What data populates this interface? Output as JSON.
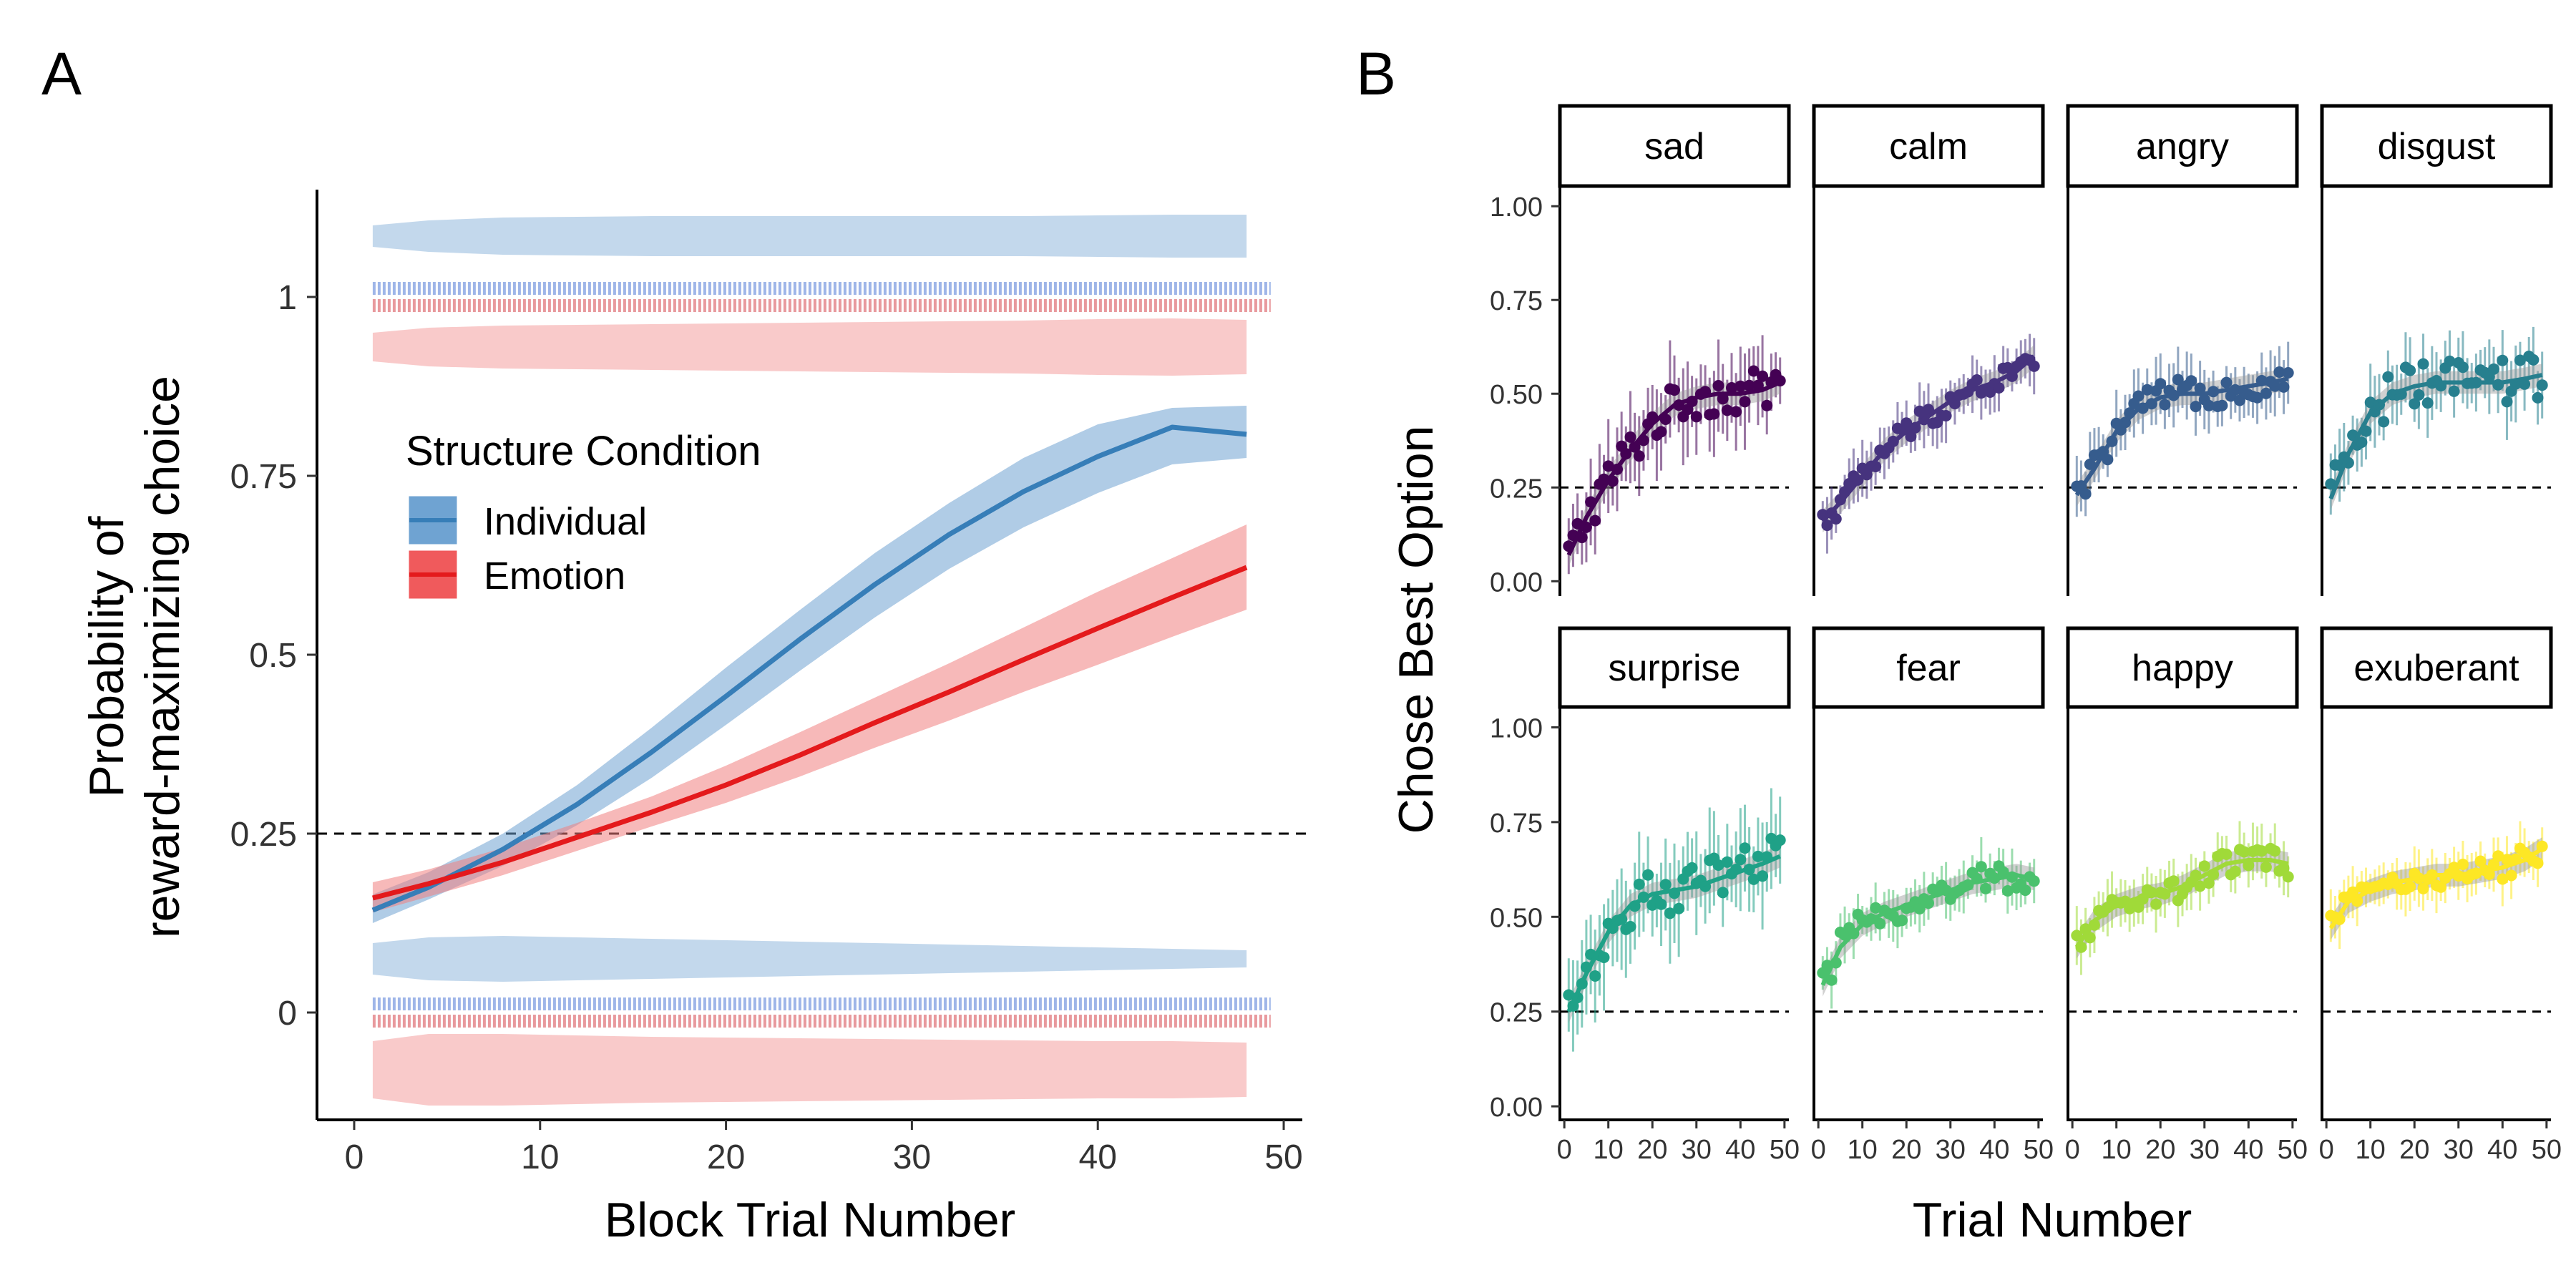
{
  "panels": {
    "A": {
      "letter": "A"
    },
    "B": {
      "letter": "B"
    }
  },
  "chart_data": [
    {
      "id": "A",
      "type": "line",
      "title": "",
      "xlabel": "Block Trial Number",
      "ylabel_lines": [
        "Probability of",
        "reward-maximizing choice"
      ],
      "xlim": [
        -2,
        51
      ],
      "ylim": [
        -0.15,
        1.15
      ],
      "xticks": [
        0,
        10,
        20,
        30,
        40,
        50
      ],
      "yticks": [
        0,
        0.25,
        0.5,
        0.75,
        1
      ],
      "ytick_labels": [
        "0",
        "0.25",
        "0.5",
        "0.75",
        "1"
      ],
      "reference_line": 0.25,
      "legend": {
        "title": "Structure Condition",
        "placement": "center-left"
      },
      "x": [
        1,
        4,
        8,
        12,
        16,
        20,
        24,
        28,
        32,
        36,
        40,
        44,
        48
      ],
      "series": [
        {
          "name": "Individual",
          "color": "#377EB8",
          "ribbon_color": "#6FA3D2",
          "raw_color": "#4F79D6",
          "y": [
            0.143,
            0.175,
            0.228,
            0.291,
            0.364,
            0.442,
            0.522,
            0.598,
            0.668,
            0.728,
            0.777,
            0.818,
            0.808
          ],
          "ci_low": [
            0.125,
            0.158,
            0.205,
            0.262,
            0.328,
            0.402,
            0.478,
            0.552,
            0.62,
            0.678,
            0.726,
            0.766,
            0.775
          ],
          "ci_high": [
            0.165,
            0.196,
            0.25,
            0.318,
            0.398,
            0.482,
            0.563,
            0.642,
            0.712,
            0.775,
            0.822,
            0.845,
            0.848
          ],
          "violin_top": {
            "center": 1.085,
            "halfwidth": [
              0.015,
              0.022,
              0.026,
              0.027,
              0.028,
              0.028,
              0.028,
              0.028,
              0.028,
              0.028,
              0.029,
              0.03,
              0.03
            ]
          },
          "violin_bottom": {
            "center": 0.075,
            "halfwidth": [
              0.022,
              0.03,
              0.032,
              0.03,
              0.028,
              0.026,
              0.024,
              0.022,
              0.02,
              0.018,
              0.016,
              0.014,
              0.012
            ]
          },
          "raw_points_y": [
            1.012,
            0.012
          ]
        },
        {
          "name": "Emotion",
          "color": "#E41A1C",
          "ribbon_color": "#F08080",
          "raw_color": "#D6454C",
          "y": [
            0.16,
            0.18,
            0.21,
            0.245,
            0.28,
            0.318,
            0.36,
            0.405,
            0.448,
            0.493,
            0.537,
            0.58,
            0.622
          ],
          "ci_low": [
            0.14,
            0.162,
            0.192,
            0.226,
            0.26,
            0.293,
            0.33,
            0.37,
            0.408,
            0.448,
            0.486,
            0.525,
            0.563
          ],
          "ci_high": [
            0.182,
            0.2,
            0.23,
            0.265,
            0.302,
            0.345,
            0.392,
            0.44,
            0.488,
            0.538,
            0.588,
            0.635,
            0.682
          ],
          "violin_top": {
            "center": 0.93,
            "halfwidth": [
              0.02,
              0.027,
              0.03,
              0.031,
              0.032,
              0.033,
              0.034,
              0.035,
              0.036,
              0.037,
              0.039,
              0.04,
              0.038
            ]
          },
          "violin_bottom": {
            "center": -0.08,
            "halfwidth": [
              0.04,
              0.05,
              0.05,
              0.048,
              0.046,
              0.045,
              0.044,
              0.043,
              0.042,
              0.041,
              0.04,
              0.04,
              0.038
            ]
          },
          "raw_points_y": [
            0.988,
            -0.012
          ]
        }
      ]
    },
    {
      "id": "B",
      "type": "scatter",
      "title": "",
      "xlabel": "Trial Number",
      "ylabel": "Chose Best Option",
      "xlim": [
        -1,
        51
      ],
      "ylim": [
        -0.03,
        1.05
      ],
      "xticks": [
        0,
        10,
        20,
        30,
        40,
        50
      ],
      "xtick_labels": [
        "0",
        "10",
        "20",
        "30",
        "40",
        "50"
      ],
      "yticks": [
        0,
        0.25,
        0.5,
        0.75,
        1
      ],
      "ytick_labels": [
        "0.00",
        "0.25",
        "0.50",
        "0.75",
        "1.00"
      ],
      "reference_line": 0.25,
      "facets": [
        {
          "name": "sad",
          "color": "#440154",
          "smooth": [
            [
              1,
              0.07
            ],
            [
              5,
              0.17
            ],
            [
              10,
              0.27
            ],
            [
              15,
              0.35
            ],
            [
              20,
              0.42
            ],
            [
              25,
              0.47
            ],
            [
              30,
              0.49
            ],
            [
              35,
              0.5
            ],
            [
              40,
              0.5
            ],
            [
              45,
              0.51
            ],
            [
              49,
              0.53
            ]
          ],
          "noise": 0.055,
          "err": 0.1
        },
        {
          "name": "calm",
          "color": "#46337E",
          "smooth": [
            [
              1,
              0.16
            ],
            [
              5,
              0.21
            ],
            [
              10,
              0.28
            ],
            [
              15,
              0.35
            ],
            [
              20,
              0.4
            ],
            [
              25,
              0.44
            ],
            [
              30,
              0.48
            ],
            [
              35,
              0.51
            ],
            [
              40,
              0.53
            ],
            [
              45,
              0.56
            ],
            [
              49,
              0.6
            ]
          ],
          "noise": 0.035,
          "err": 0.06
        },
        {
          "name": "angry",
          "color": "#365C8D",
          "smooth": [
            [
              1,
              0.23
            ],
            [
              5,
              0.3
            ],
            [
              10,
              0.4
            ],
            [
              15,
              0.46
            ],
            [
              20,
              0.49
            ],
            [
              25,
              0.5
            ],
            [
              30,
              0.5
            ],
            [
              35,
              0.51
            ],
            [
              40,
              0.52
            ],
            [
              45,
              0.53
            ],
            [
              49,
              0.54
            ]
          ],
          "noise": 0.04,
          "err": 0.07
        },
        {
          "name": "disgust",
          "color": "#277F8E",
          "smooth": [
            [
              1,
              0.22
            ],
            [
              5,
              0.34
            ],
            [
              10,
              0.45
            ],
            [
              15,
              0.5
            ],
            [
              20,
              0.52
            ],
            [
              25,
              0.53
            ],
            [
              30,
              0.53
            ],
            [
              35,
              0.53
            ],
            [
              40,
              0.53
            ],
            [
              45,
              0.54
            ],
            [
              49,
              0.55
            ]
          ],
          "noise": 0.06,
          "err": 0.08
        },
        {
          "name": "surprise",
          "color": "#1FA187",
          "smooth": [
            [
              1,
              0.25
            ],
            [
              5,
              0.35
            ],
            [
              10,
              0.46
            ],
            [
              15,
              0.53
            ],
            [
              20,
              0.56
            ],
            [
              25,
              0.57
            ],
            [
              30,
              0.58
            ],
            [
              35,
              0.6
            ],
            [
              40,
              0.62
            ],
            [
              45,
              0.64
            ],
            [
              49,
              0.66
            ]
          ],
          "noise": 0.06,
          "err": 0.11
        },
        {
          "name": "fear",
          "color": "#4AC16D",
          "smooth": [
            [
              1,
              0.32
            ],
            [
              5,
              0.42
            ],
            [
              10,
              0.48
            ],
            [
              15,
              0.51
            ],
            [
              20,
              0.53
            ],
            [
              25,
              0.55
            ],
            [
              30,
              0.57
            ],
            [
              35,
              0.59
            ],
            [
              40,
              0.6
            ],
            [
              45,
              0.61
            ],
            [
              49,
              0.6
            ]
          ],
          "noise": 0.04,
          "err": 0.06
        },
        {
          "name": "happy",
          "color": "#A0DA39",
          "smooth": [
            [
              1,
              0.42
            ],
            [
              5,
              0.49
            ],
            [
              10,
              0.53
            ],
            [
              15,
              0.55
            ],
            [
              20,
              0.56
            ],
            [
              25,
              0.58
            ],
            [
              30,
              0.61
            ],
            [
              35,
              0.64
            ],
            [
              40,
              0.65
            ],
            [
              45,
              0.65
            ],
            [
              49,
              0.64
            ]
          ],
          "noise": 0.035,
          "err": 0.06
        },
        {
          "name": "exuberant",
          "color": "#FDE725",
          "smooth": [
            [
              1,
              0.47
            ],
            [
              5,
              0.54
            ],
            [
              10,
              0.57
            ],
            [
              15,
              0.59
            ],
            [
              20,
              0.6
            ],
            [
              25,
              0.61
            ],
            [
              30,
              0.61
            ],
            [
              35,
              0.62
            ],
            [
              40,
              0.63
            ],
            [
              45,
              0.65
            ],
            [
              49,
              0.68
            ]
          ],
          "noise": 0.035,
          "err": 0.06
        }
      ]
    }
  ]
}
